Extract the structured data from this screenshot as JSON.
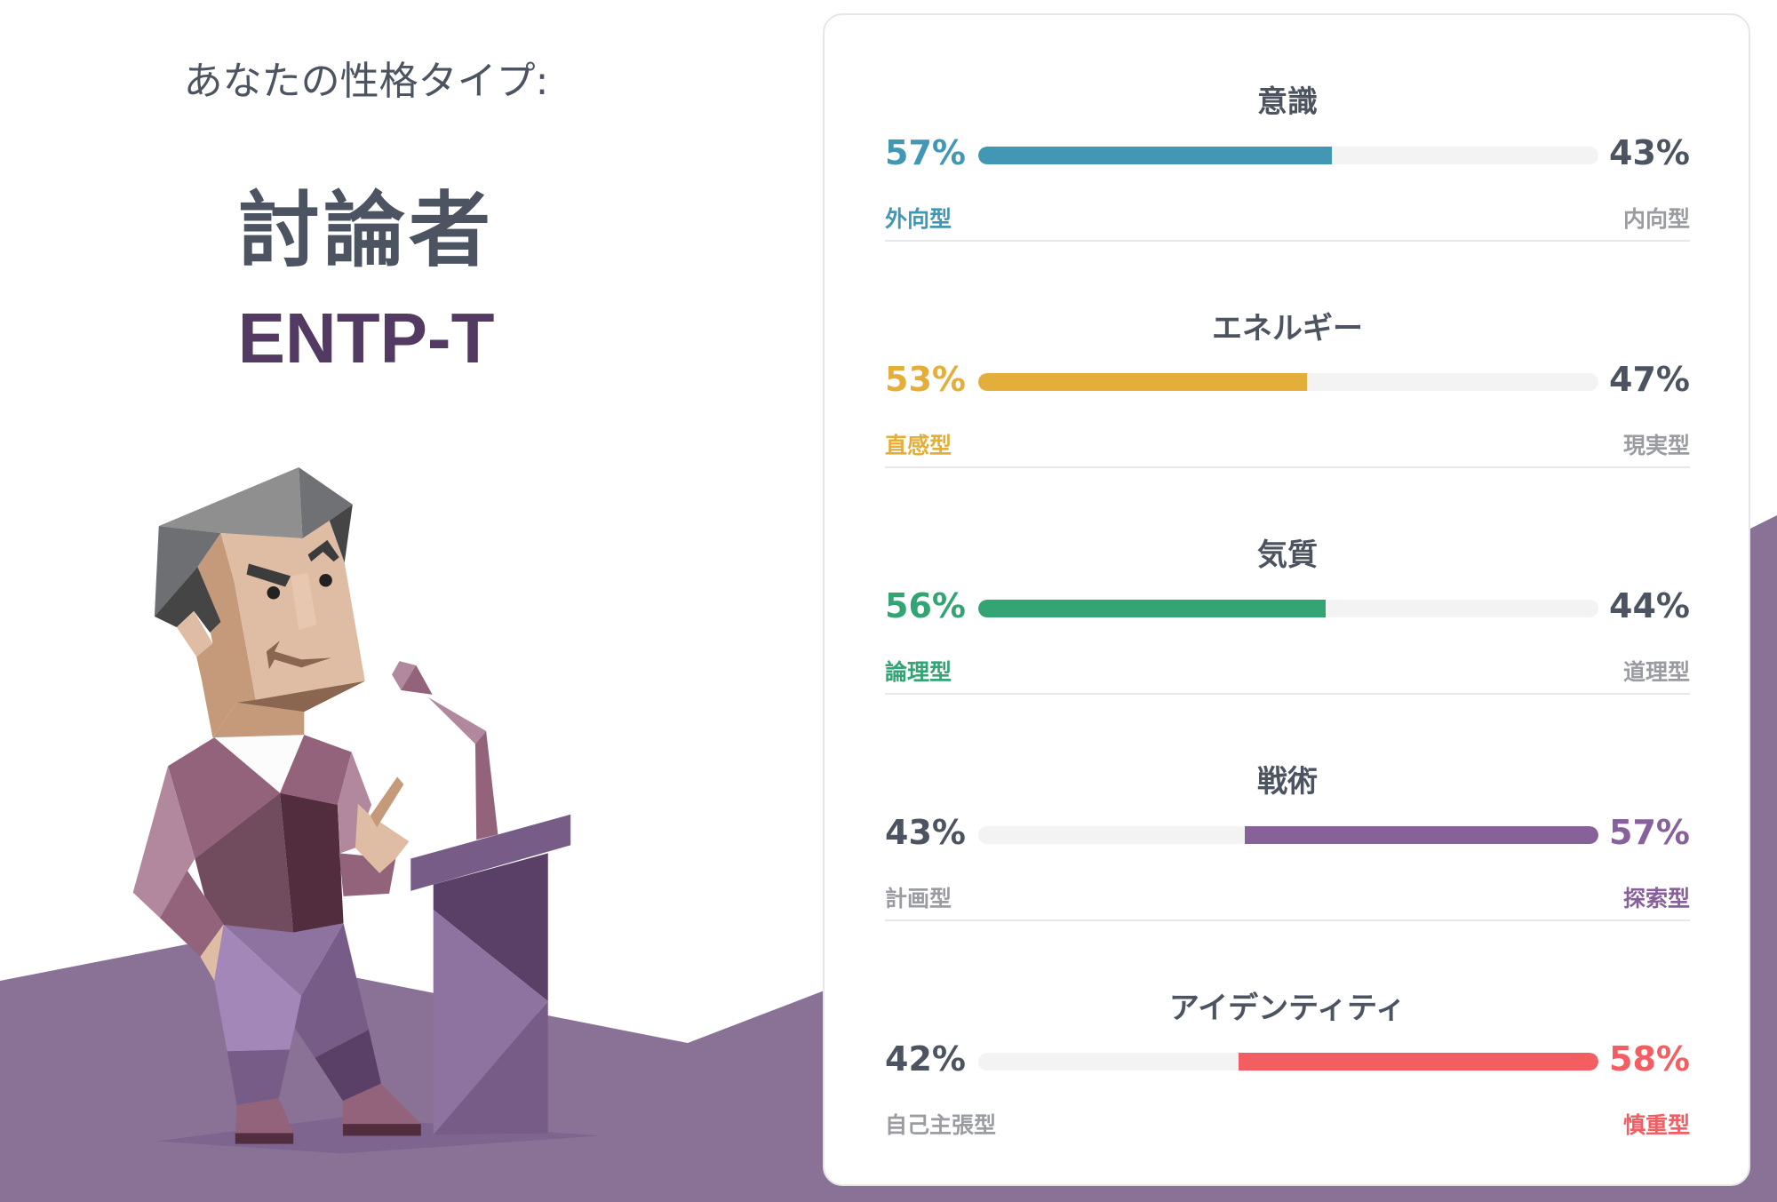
{
  "header": {
    "intro": "あなたの性格タイプ:",
    "type_name": "討論者",
    "type_code": "ENTP-T"
  },
  "colors": {
    "background_purple": "#8a7297",
    "type_code": "#523a63",
    "neutral_text": "#4d5461",
    "neutral_label": "#9a9ca2",
    "track": "#f3f3f4"
  },
  "traits": [
    {
      "title": "意識",
      "left_pct": "57%",
      "right_pct": "43%",
      "left_label": "外向型",
      "right_label": "内向型",
      "dominant": "left",
      "value": 57,
      "color": "#4298b4"
    },
    {
      "title": "エネルギー",
      "left_pct": "53%",
      "right_pct": "47%",
      "left_label": "直感型",
      "right_label": "現実型",
      "dominant": "left",
      "value": 53,
      "color": "#e4ae3a"
    },
    {
      "title": "気質",
      "left_pct": "56%",
      "right_pct": "44%",
      "left_label": "論理型",
      "right_label": "道理型",
      "dominant": "left",
      "value": 56,
      "color": "#33a474"
    },
    {
      "title": "戦術",
      "left_pct": "43%",
      "right_pct": "57%",
      "left_label": "計画型",
      "right_label": "探索型",
      "dominant": "right",
      "value": 57,
      "color": "#88619a"
    },
    {
      "title": "アイデンティティ",
      "left_pct": "42%",
      "right_pct": "58%",
      "left_label": "自己主張型",
      "right_label": "慎重型",
      "dominant": "right",
      "value": 58,
      "color": "#f25e62"
    }
  ]
}
